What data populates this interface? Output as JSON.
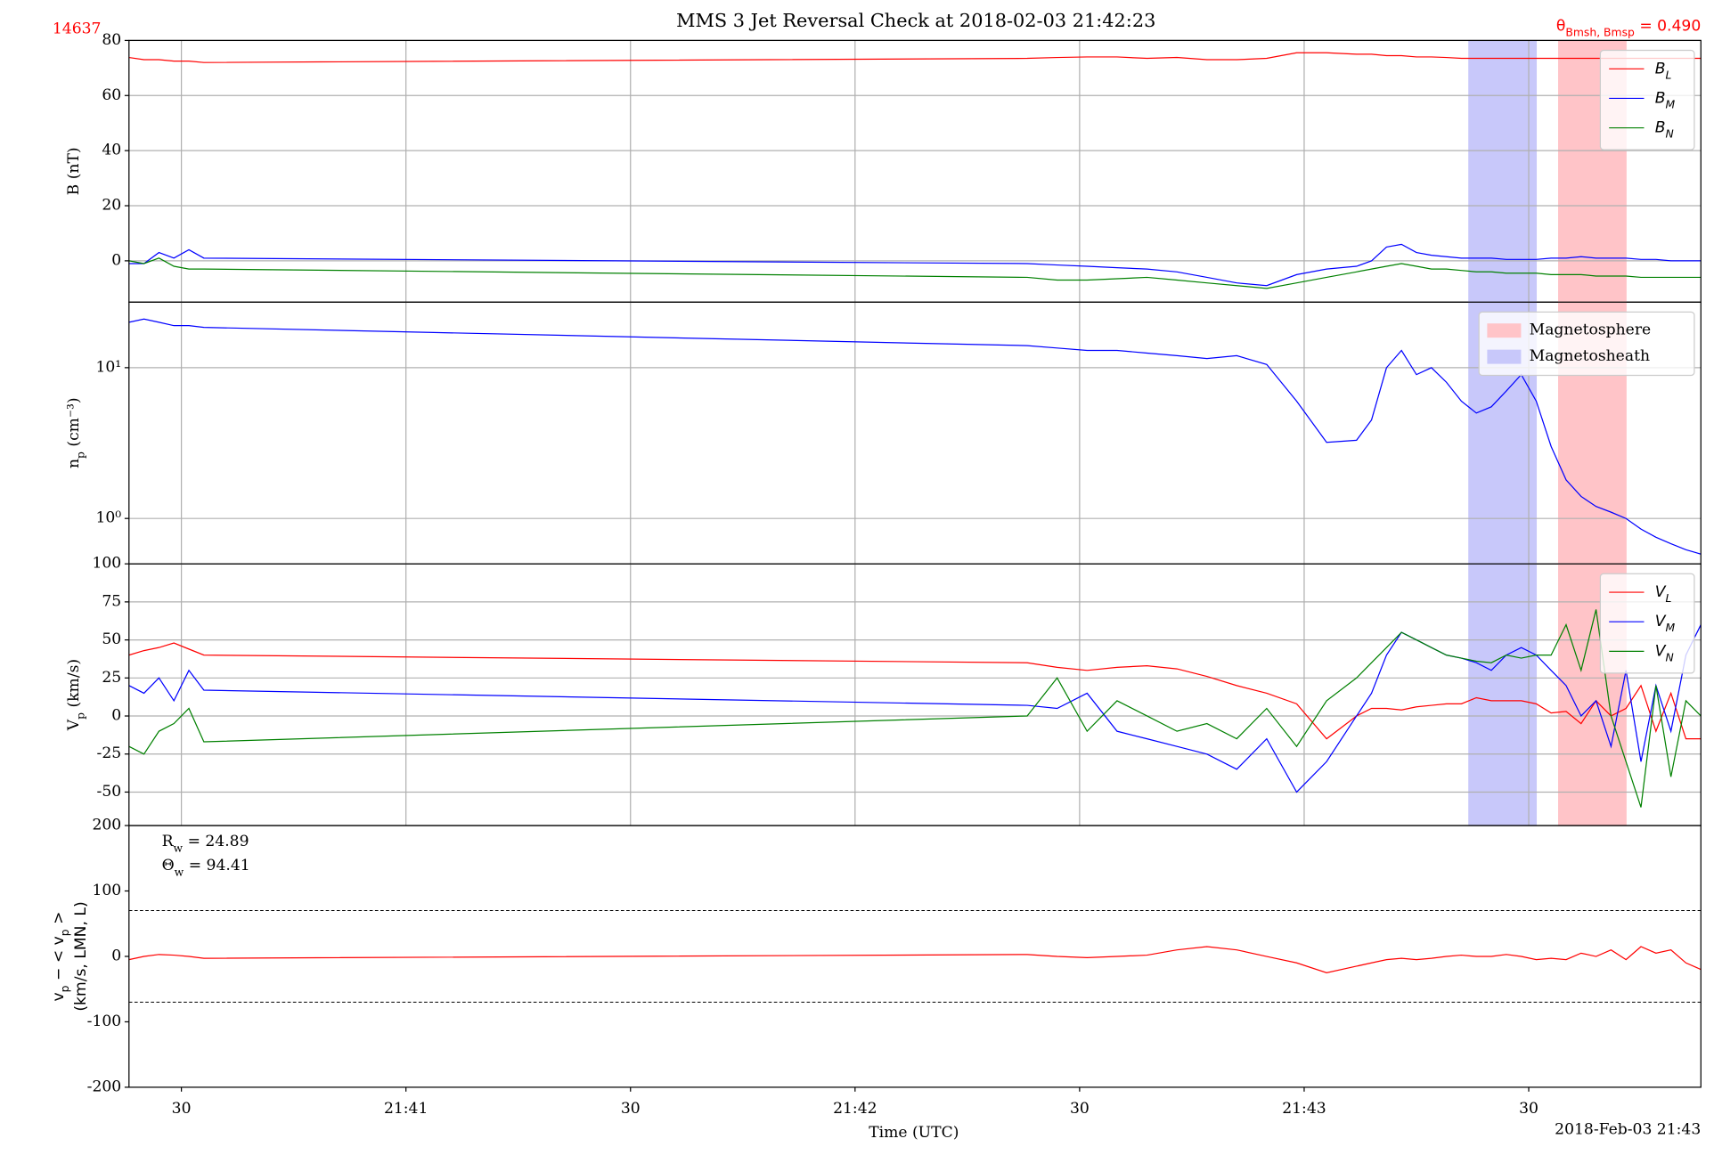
{
  "figure": {
    "title": "MMS 3 Jet Reversal Check at 2018-02-03 21:42:23",
    "id_label": "14637",
    "theta_label": "θ_{Bmsh, Bmsp} = 0.490",
    "x_label": "Time (UTC)",
    "date_label": "2018-Feb-03 21:43"
  },
  "chart_data": [
    {
      "type": "line",
      "y_label": "B (nT)",
      "ylim": [
        -15,
        80
      ],
      "yticks": [
        0,
        20,
        40,
        60,
        80
      ],
      "grid": true,
      "legend": "upper right",
      "x": [
        "21:40:23",
        "21:40:25",
        "21:40:27",
        "21:40:29",
        "21:40:31",
        "21:40:33",
        "21:42:23",
        "21:42:27",
        "21:42:31",
        "21:42:35",
        "21:42:39",
        "21:42:43",
        "21:42:47",
        "21:42:51",
        "21:42:55",
        "21:42:59",
        "21:43:03",
        "21:43:07",
        "21:43:09",
        "21:43:11",
        "21:43:13",
        "21:43:15",
        "21:43:17",
        "21:43:19",
        "21:43:21",
        "21:43:23",
        "21:43:25",
        "21:43:27",
        "21:43:29",
        "21:43:31",
        "21:43:33",
        "21:43:35",
        "21:43:37",
        "21:43:39",
        "21:43:41",
        "21:43:43",
        "21:43:45",
        "21:43:47",
        "21:43:49",
        "21:43:51",
        "21:43:53"
      ],
      "series": [
        {
          "name": "B_L",
          "color": "#ff0000",
          "values": [
            73.8,
            73,
            73,
            72.5,
            72.5,
            72,
            73.5,
            73.8,
            74,
            74,
            73.5,
            73.8,
            73,
            73,
            73.5,
            75.5,
            75.5,
            75,
            75,
            74.5,
            74.5,
            74,
            74,
            73.8,
            73.5,
            73.5,
            73.5,
            73.5,
            73.5,
            73.5,
            73.5,
            73.5,
            73.5,
            73.5,
            73.5,
            73.5,
            73.5,
            73.5,
            73.5,
            73.5,
            73.5
          ]
        },
        {
          "name": "B_M",
          "color": "#0000ff",
          "values": [
            -1,
            -1,
            3,
            1,
            4,
            1,
            -1,
            -1.5,
            -2,
            -2.5,
            -3,
            -4,
            -6,
            -8,
            -9,
            -5,
            -3,
            -2,
            0,
            5,
            6,
            3,
            2,
            1.5,
            1,
            1,
            1,
            0.5,
            0.5,
            0.5,
            1,
            1,
            1.5,
            1,
            1,
            1,
            0.5,
            0.5,
            0,
            0,
            0
          ]
        },
        {
          "name": "B_N",
          "color": "#008000",
          "values": [
            0,
            -1,
            1,
            -2,
            -3,
            -3,
            -6,
            -7,
            -7,
            -6.5,
            -6,
            -7,
            -8,
            -9,
            -10,
            -8,
            -6,
            -4,
            -3,
            -2,
            -1,
            -2,
            -3,
            -3,
            -3.5,
            -4,
            -4,
            -4.5,
            -4.5,
            -4.5,
            -5,
            -5,
            -5,
            -5.5,
            -5.5,
            -5.5,
            -6,
            -6,
            -6,
            -6,
            -6
          ]
        }
      ]
    },
    {
      "type": "line",
      "y_label": "n_p (cm⁻³)",
      "log": true,
      "ylim": [
        0.5,
        27.2
      ],
      "yticks": [
        {
          "value": 1,
          "label": "10⁰"
        },
        {
          "value": 10,
          "label": "10¹"
        }
      ],
      "grid": true,
      "legend": "upper right",
      "regions": [
        {
          "name": "Magnetosphere",
          "color": "#ffc4c8",
          "x": [
            "21:43:34",
            "21:43:43"
          ]
        },
        {
          "name": "Magnetosheath",
          "color": "#c8c8fa",
          "x": [
            "21:43:22",
            "21:43:31"
          ]
        }
      ],
      "x": [
        "21:40:23",
        "21:40:25",
        "21:40:27",
        "21:40:29",
        "21:40:31",
        "21:40:33",
        "21:42:23",
        "21:42:27",
        "21:42:31",
        "21:42:35",
        "21:42:39",
        "21:42:43",
        "21:42:47",
        "21:42:51",
        "21:42:55",
        "21:42:59",
        "21:43:03",
        "21:43:07",
        "21:43:09",
        "21:43:11",
        "21:43:13",
        "21:43:15",
        "21:43:17",
        "21:43:19",
        "21:43:21",
        "21:43:23",
        "21:43:25",
        "21:43:27",
        "21:43:29",
        "21:43:31",
        "21:43:33",
        "21:43:35",
        "21:43:37",
        "21:43:39",
        "21:43:41",
        "21:43:43",
        "21:43:45",
        "21:43:47",
        "21:43:49",
        "21:43:51",
        "21:43:53"
      ],
      "series": [
        {
          "name": "n_p",
          "color": "#0000ff",
          "values": [
            20,
            21,
            20,
            19,
            19,
            18.5,
            14,
            13.5,
            13,
            13,
            12.5,
            12,
            11.5,
            12,
            10.5,
            6,
            3.2,
            3.3,
            4.5,
            10,
            13,
            9,
            10,
            8,
            6,
            5,
            5.5,
            7,
            9,
            6,
            3,
            1.8,
            1.4,
            1.2,
            1.1,
            1.0,
            0.85,
            0.75,
            0.68,
            0.62,
            0.58
          ]
        }
      ]
    },
    {
      "type": "line",
      "y_label": "V_p (km/s)",
      "ylim": [
        -72,
        100
      ],
      "yticks": [
        -50,
        -25,
        0,
        25,
        50,
        75,
        100
      ],
      "grid": true,
      "legend": "upper right",
      "x": [
        "21:40:23",
        "21:40:25",
        "21:40:27",
        "21:40:29",
        "21:40:31",
        "21:40:33",
        "21:42:23",
        "21:42:27",
        "21:42:31",
        "21:42:35",
        "21:42:39",
        "21:42:43",
        "21:42:47",
        "21:42:51",
        "21:42:55",
        "21:42:59",
        "21:43:03",
        "21:43:07",
        "21:43:09",
        "21:43:11",
        "21:43:13",
        "21:43:15",
        "21:43:17",
        "21:43:19",
        "21:43:21",
        "21:43:23",
        "21:43:25",
        "21:43:27",
        "21:43:29",
        "21:43:31",
        "21:43:33",
        "21:43:35",
        "21:43:37",
        "21:43:39",
        "21:43:41",
        "21:43:43",
        "21:43:45",
        "21:43:47",
        "21:43:49",
        "21:43:51",
        "21:43:53"
      ],
      "series": [
        {
          "name": "V_L",
          "color": "#ff0000",
          "values": [
            40,
            43,
            45,
            48,
            44,
            40,
            35,
            32,
            30,
            32,
            33,
            31,
            26,
            20,
            15,
            8,
            -15,
            0,
            5,
            5,
            4,
            6,
            7,
            8,
            8,
            12,
            10,
            10,
            10,
            8,
            2,
            3,
            -5,
            10,
            0,
            5,
            20,
            -10,
            15,
            -15,
            -15
          ]
        },
        {
          "name": "V_M",
          "color": "#0000ff",
          "values": [
            20,
            15,
            25,
            10,
            30,
            17,
            7,
            5,
            15,
            -10,
            -15,
            -20,
            -25,
            -35,
            -15,
            -50,
            -30,
            0,
            15,
            40,
            55,
            50,
            45,
            40,
            38,
            35,
            30,
            40,
            45,
            40,
            30,
            20,
            0,
            10,
            -20,
            30,
            -30,
            20,
            -10,
            40,
            60
          ]
        },
        {
          "name": "V_N",
          "color": "#008000",
          "values": [
            -20,
            -25,
            -10,
            -5,
            5,
            -17,
            0,
            25,
            -10,
            10,
            0,
            -10,
            -5,
            -15,
            5,
            -20,
            10,
            25,
            35,
            45,
            55,
            50,
            45,
            40,
            38,
            36,
            35,
            40,
            38,
            40,
            40,
            60,
            30,
            70,
            0,
            -30,
            -60,
            20,
            -40,
            10,
            0
          ]
        }
      ]
    },
    {
      "type": "line",
      "y_label": [
        "v_p − < v_p >",
        "(km/s, LMN, L)"
      ],
      "ylim": [
        -200,
        200
      ],
      "yticks": [
        -200,
        -100,
        0,
        100,
        200
      ],
      "grid": false,
      "xlim": [
        "21:40:23",
        "21:43:53"
      ],
      "xticks": [
        {
          "value": "21:40:30",
          "label": "30"
        },
        {
          "value": "21:41:00",
          "label": "21:41"
        },
        {
          "value": "21:41:30",
          "label": "30"
        },
        {
          "value": "21:42:00",
          "label": "21:42"
        },
        {
          "value": "21:42:30",
          "label": "30"
        },
        {
          "value": "21:43:00",
          "label": "21:43"
        },
        {
          "value": "21:43:30",
          "label": "30"
        }
      ],
      "hlines": [
        70,
        -70
      ],
      "annotations": [
        "R_w = 24.89",
        "Θ_w = 94.41"
      ],
      "x": [
        "21:40:23",
        "21:40:25",
        "21:40:27",
        "21:40:29",
        "21:40:31",
        "21:40:33",
        "21:42:23",
        "21:42:27",
        "21:42:31",
        "21:42:35",
        "21:42:39",
        "21:42:43",
        "21:42:47",
        "21:42:51",
        "21:42:55",
        "21:42:59",
        "21:43:03",
        "21:43:07",
        "21:43:09",
        "21:43:11",
        "21:43:13",
        "21:43:15",
        "21:43:17",
        "21:43:19",
        "21:43:21",
        "21:43:23",
        "21:43:25",
        "21:43:27",
        "21:43:29",
        "21:43:31",
        "21:43:33",
        "21:43:35",
        "21:43:37",
        "21:43:39",
        "21:43:41",
        "21:43:43",
        "21:43:45",
        "21:43:47",
        "21:43:49",
        "21:43:51",
        "21:43:53"
      ],
      "series": [
        {
          "name": "v_p − < v_p >",
          "color": "#ff0000",
          "values": [
            -5,
            0,
            3,
            2,
            0,
            -3,
            3,
            0,
            -2,
            0,
            2,
            10,
            15,
            10,
            0,
            -10,
            -25,
            -15,
            -10,
            -5,
            -3,
            -5,
            -3,
            0,
            2,
            0,
            0,
            3,
            0,
            -5,
            -3,
            -5,
            5,
            0,
            10,
            -5,
            15,
            5,
            10,
            -10,
            -20
          ]
        }
      ]
    }
  ]
}
